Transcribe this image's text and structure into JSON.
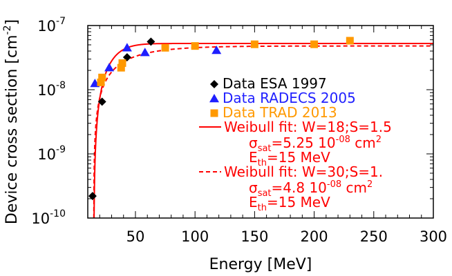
{
  "chart_data": {
    "type": "scatter",
    "title": "",
    "xlabel": "Energy [MeV]",
    "ylabel": "Device cross section [cm",
    "ylabel_exp": "-2",
    "ylabel_close": "]",
    "xlim": [
      10,
      300
    ],
    "ylim": [
      1e-10,
      1e-07
    ],
    "yscale": "log",
    "grid": false,
    "legend_position": "right",
    "x_ticks": [
      {
        "value": 50,
        "label": "50"
      },
      {
        "value": 100,
        "label": "100"
      },
      {
        "value": 150,
        "label": "150"
      },
      {
        "value": 200,
        "label": "200"
      },
      {
        "value": 250,
        "label": "250"
      },
      {
        "value": 300,
        "label": "300"
      }
    ],
    "y_ticks": [
      {
        "value": 1e-10,
        "base": "10",
        "exp": "-10"
      },
      {
        "value": 1e-09,
        "base": "10",
        "exp": "-9"
      },
      {
        "value": 1e-08,
        "base": "10",
        "exp": "-8"
      },
      {
        "value": 1e-07,
        "base": "10",
        "exp": "-7"
      }
    ],
    "series": [
      {
        "name": "Data ESA 1997",
        "marker": "diamond",
        "color": "#000000",
        "points": [
          {
            "x": 14,
            "y": 2.2e-10
          },
          {
            "x": 22,
            "y": 6.5e-09
          },
          {
            "x": 43,
            "y": 3.2e-08
          },
          {
            "x": 63,
            "y": 5.6e-08
          }
        ]
      },
      {
        "name": "Data RADECS 2005",
        "marker": "triangle",
        "color": "#1f1fff",
        "points": [
          {
            "x": 16,
            "y": 1.25e-08
          },
          {
            "x": 28,
            "y": 2.2e-08
          },
          {
            "x": 43,
            "y": 4.5e-08
          },
          {
            "x": 58,
            "y": 3.8e-08
          },
          {
            "x": 118,
            "y": 4.1e-08
          }
        ]
      },
      {
        "name": "Data TRAD 2013",
        "marker": "square",
        "color": "#ff9900",
        "points": [
          {
            "x": 21,
            "y": 1.3e-08
          },
          {
            "x": 22,
            "y": 1.55e-08
          },
          {
            "x": 38,
            "y": 2.2e-08
          },
          {
            "x": 39,
            "y": 2.6e-08
          },
          {
            "x": 75,
            "y": 4.5e-08
          },
          {
            "x": 100,
            "y": 4.8e-08
          },
          {
            "x": 150,
            "y": 5.1e-08
          },
          {
            "x": 200,
            "y": 5.1e-08
          },
          {
            "x": 230,
            "y": 5.8e-08
          }
        ]
      }
    ],
    "fits": [
      {
        "line": "solid",
        "color": "#ff0000",
        "W": 18,
        "S": 1.5,
        "sigma_sat": 5.25e-08,
        "E_th": 15,
        "label_line1": "Weibull fit: W=18;S=1.5",
        "sigma_label": "σ",
        "sigma_sub": "sat",
        "sigma_value": "=5.25 10",
        "sigma_exp": "-08",
        "sigma_unit": " cm",
        "sigma_unit_exp": "2",
        "eth_label": "E",
        "eth_sub": "th",
        "eth_value": "=15 MeV"
      },
      {
        "line": "dashed",
        "color": "#ff0000",
        "W": 30,
        "S": 1.0,
        "sigma_sat": 4.8e-08,
        "E_th": 15,
        "label_line1": "Weibull fit: W=30;S=1.",
        "sigma_label": "σ",
        "sigma_sub": "sat",
        "sigma_value": "=4.8 10",
        "sigma_exp": "-08",
        "sigma_unit": " cm",
        "sigma_unit_exp": "2",
        "eth_label": "E",
        "eth_sub": "th",
        "eth_value": "=15 MeV"
      }
    ]
  }
}
